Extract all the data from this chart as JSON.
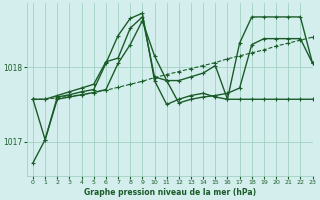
{
  "title": "Graphe pression niveau de la mer (hPa)",
  "bg_color": "#d4eeee",
  "plot_bg_color": "#d4eeee",
  "grid_color": "#99ccbb",
  "line_color": "#1a5c28",
  "xlim": [
    -0.5,
    23
  ],
  "ylim": [
    1016.55,
    1018.85
  ],
  "yticks": [
    1017,
    1018
  ],
  "xticks": [
    0,
    1,
    2,
    3,
    4,
    5,
    6,
    7,
    8,
    9,
    10,
    11,
    12,
    13,
    14,
    15,
    16,
    17,
    18,
    19,
    20,
    21,
    22,
    23
  ],
  "series": [
    {
      "y": [
        1016.72,
        1017.03,
        1017.57,
        1017.6,
        1017.63,
        1017.66,
        1017.7,
        1018.05,
        1018.3,
        1018.62,
        1018.15,
        1017.82,
        1017.52,
        1017.57,
        1017.6,
        1017.62,
        1017.65,
        1017.72,
        1018.3,
        1018.38,
        1018.38,
        1018.38,
        1018.38,
        1018.05
      ],
      "lw": 1.0,
      "ls": "-",
      "ms": 3.5
    },
    {
      "y": [
        1017.57,
        1017.03,
        1017.6,
        1017.63,
        1017.67,
        1017.7,
        1018.05,
        1018.42,
        1018.65,
        1018.72,
        1017.82,
        1017.5,
        1017.57,
        1017.62,
        1017.65,
        1017.6,
        1017.57,
        1017.57,
        1017.57,
        1017.57,
        1017.57,
        1017.57,
        1017.57,
        1017.57
      ],
      "lw": 1.0,
      "ls": "-",
      "ms": 3.5
    },
    {
      "y": [
        1017.57,
        1017.57,
        1017.62,
        1017.67,
        1017.72,
        1017.77,
        1018.07,
        1018.12,
        1018.52,
        1018.67,
        1017.87,
        1017.82,
        1017.82,
        1017.87,
        1017.92,
        1018.02,
        1017.57,
        1018.32,
        1018.67,
        1018.67,
        1018.67,
        1018.67,
        1018.67,
        1018.05
      ],
      "lw": 1.0,
      "ls": "-",
      "ms": 3.5
    },
    {
      "y": [
        1017.57,
        1017.57,
        1017.59,
        1017.61,
        1017.63,
        1017.66,
        1017.69,
        1017.73,
        1017.77,
        1017.81,
        1017.86,
        1017.9,
        1017.94,
        1017.98,
        1018.02,
        1018.06,
        1018.11,
        1018.15,
        1018.19,
        1018.23,
        1018.28,
        1018.32,
        1018.36,
        1018.4
      ],
      "lw": 0.8,
      "ls": "--",
      "ms": 2.5
    }
  ]
}
